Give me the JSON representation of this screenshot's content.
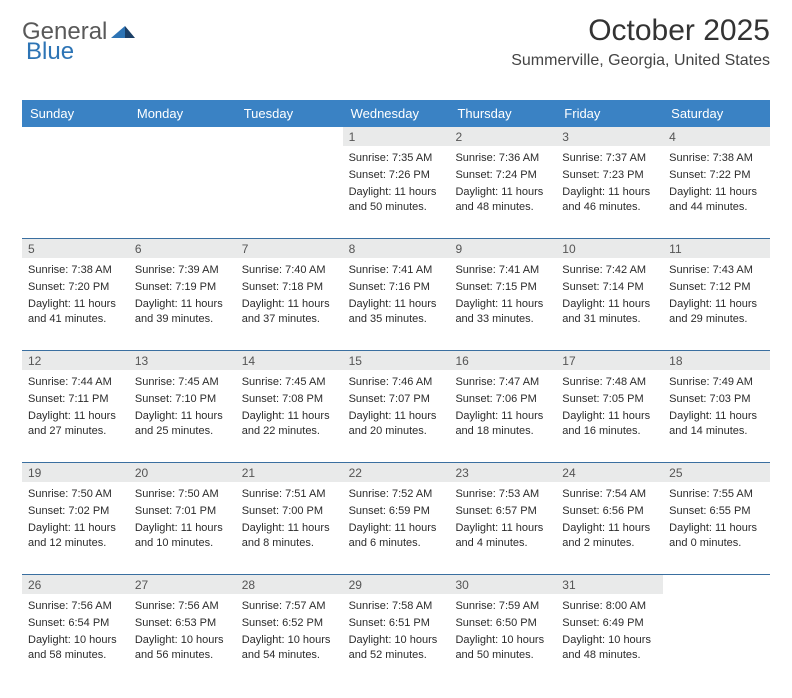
{
  "logo": {
    "word1": "General",
    "word2": "Blue"
  },
  "header": {
    "month_title": "October 2025",
    "location": "Summerville, Georgia, United States"
  },
  "colors": {
    "header_bar": "#3a82c4",
    "daynum_bg": "#e9eaea",
    "week_border": "#3a6fa0",
    "logo_blue": "#2d74b5",
    "logo_dark": "#1b3f66",
    "page_bg": "#ffffff"
  },
  "day_names": [
    "Sunday",
    "Monday",
    "Tuesday",
    "Wednesday",
    "Thursday",
    "Friday",
    "Saturday"
  ],
  "weeks": [
    [
      null,
      null,
      null,
      {
        "n": "1",
        "sr": "7:35 AM",
        "ss": "7:26 PM",
        "dl": "11 hours and 50 minutes."
      },
      {
        "n": "2",
        "sr": "7:36 AM",
        "ss": "7:24 PM",
        "dl": "11 hours and 48 minutes."
      },
      {
        "n": "3",
        "sr": "7:37 AM",
        "ss": "7:23 PM",
        "dl": "11 hours and 46 minutes."
      },
      {
        "n": "4",
        "sr": "7:38 AM",
        "ss": "7:22 PM",
        "dl": "11 hours and 44 minutes."
      }
    ],
    [
      {
        "n": "5",
        "sr": "7:38 AM",
        "ss": "7:20 PM",
        "dl": "11 hours and 41 minutes."
      },
      {
        "n": "6",
        "sr": "7:39 AM",
        "ss": "7:19 PM",
        "dl": "11 hours and 39 minutes."
      },
      {
        "n": "7",
        "sr": "7:40 AM",
        "ss": "7:18 PM",
        "dl": "11 hours and 37 minutes."
      },
      {
        "n": "8",
        "sr": "7:41 AM",
        "ss": "7:16 PM",
        "dl": "11 hours and 35 minutes."
      },
      {
        "n": "9",
        "sr": "7:41 AM",
        "ss": "7:15 PM",
        "dl": "11 hours and 33 minutes."
      },
      {
        "n": "10",
        "sr": "7:42 AM",
        "ss": "7:14 PM",
        "dl": "11 hours and 31 minutes."
      },
      {
        "n": "11",
        "sr": "7:43 AM",
        "ss": "7:12 PM",
        "dl": "11 hours and 29 minutes."
      }
    ],
    [
      {
        "n": "12",
        "sr": "7:44 AM",
        "ss": "7:11 PM",
        "dl": "11 hours and 27 minutes."
      },
      {
        "n": "13",
        "sr": "7:45 AM",
        "ss": "7:10 PM",
        "dl": "11 hours and 25 minutes."
      },
      {
        "n": "14",
        "sr": "7:45 AM",
        "ss": "7:08 PM",
        "dl": "11 hours and 22 minutes."
      },
      {
        "n": "15",
        "sr": "7:46 AM",
        "ss": "7:07 PM",
        "dl": "11 hours and 20 minutes."
      },
      {
        "n": "16",
        "sr": "7:47 AM",
        "ss": "7:06 PM",
        "dl": "11 hours and 18 minutes."
      },
      {
        "n": "17",
        "sr": "7:48 AM",
        "ss": "7:05 PM",
        "dl": "11 hours and 16 minutes."
      },
      {
        "n": "18",
        "sr": "7:49 AM",
        "ss": "7:03 PM",
        "dl": "11 hours and 14 minutes."
      }
    ],
    [
      {
        "n": "19",
        "sr": "7:50 AM",
        "ss": "7:02 PM",
        "dl": "11 hours and 12 minutes."
      },
      {
        "n": "20",
        "sr": "7:50 AM",
        "ss": "7:01 PM",
        "dl": "11 hours and 10 minutes."
      },
      {
        "n": "21",
        "sr": "7:51 AM",
        "ss": "7:00 PM",
        "dl": "11 hours and 8 minutes."
      },
      {
        "n": "22",
        "sr": "7:52 AM",
        "ss": "6:59 PM",
        "dl": "11 hours and 6 minutes."
      },
      {
        "n": "23",
        "sr": "7:53 AM",
        "ss": "6:57 PM",
        "dl": "11 hours and 4 minutes."
      },
      {
        "n": "24",
        "sr": "7:54 AM",
        "ss": "6:56 PM",
        "dl": "11 hours and 2 minutes."
      },
      {
        "n": "25",
        "sr": "7:55 AM",
        "ss": "6:55 PM",
        "dl": "11 hours and 0 minutes."
      }
    ],
    [
      {
        "n": "26",
        "sr": "7:56 AM",
        "ss": "6:54 PM",
        "dl": "10 hours and 58 minutes."
      },
      {
        "n": "27",
        "sr": "7:56 AM",
        "ss": "6:53 PM",
        "dl": "10 hours and 56 minutes."
      },
      {
        "n": "28",
        "sr": "7:57 AM",
        "ss": "6:52 PM",
        "dl": "10 hours and 54 minutes."
      },
      {
        "n": "29",
        "sr": "7:58 AM",
        "ss": "6:51 PM",
        "dl": "10 hours and 52 minutes."
      },
      {
        "n": "30",
        "sr": "7:59 AM",
        "ss": "6:50 PM",
        "dl": "10 hours and 50 minutes."
      },
      {
        "n": "31",
        "sr": "8:00 AM",
        "ss": "6:49 PM",
        "dl": "10 hours and 48 minutes."
      },
      null
    ]
  ],
  "labels": {
    "sunrise": "Sunrise:",
    "sunset": "Sunset:",
    "daylight": "Daylight:"
  }
}
